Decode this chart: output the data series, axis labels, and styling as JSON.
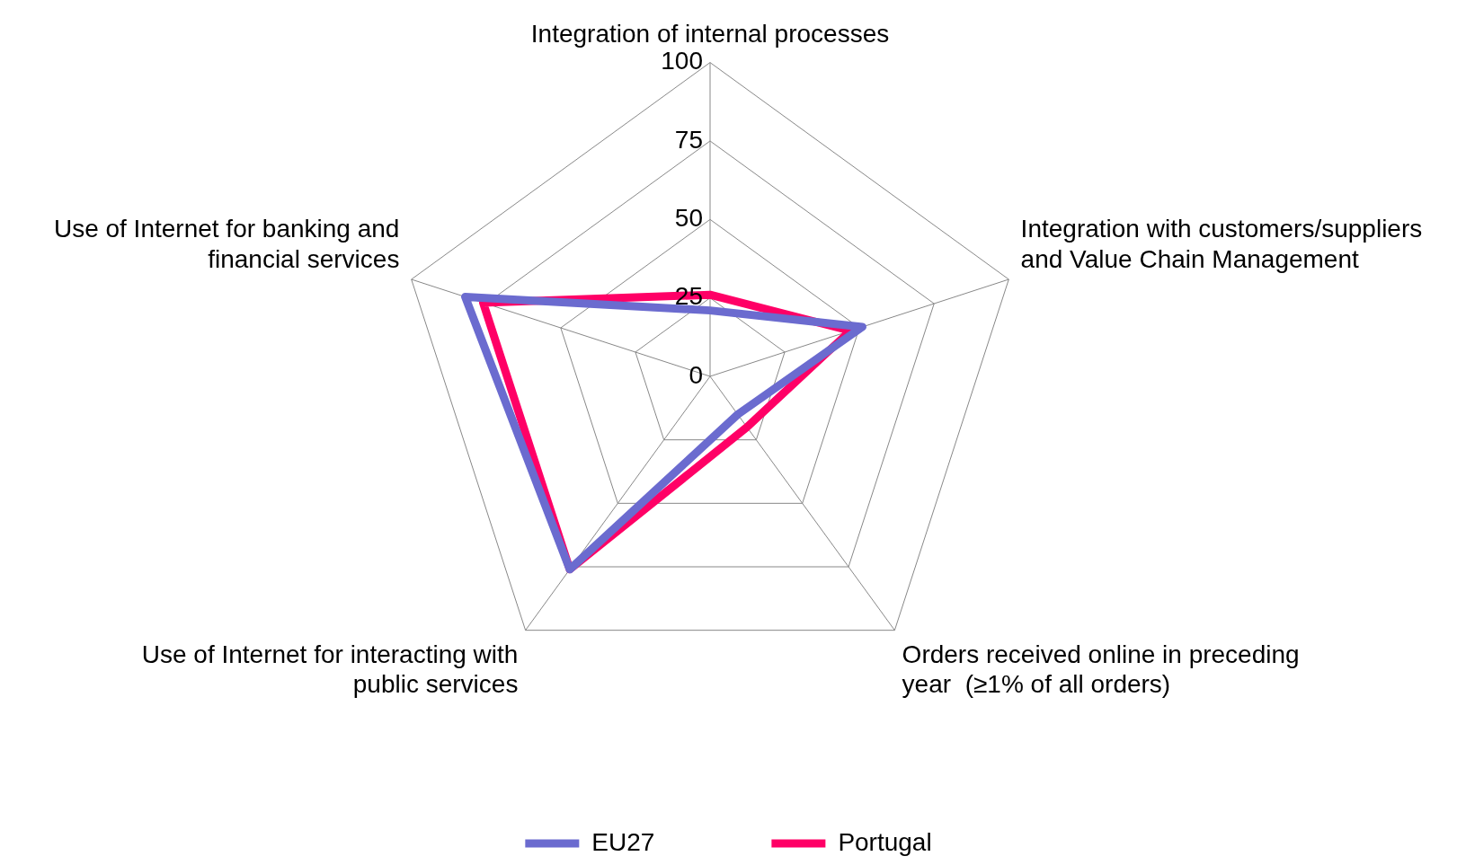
{
  "chart_data": {
    "type": "radar",
    "categories": [
      "Integration of internal processes",
      "Integration with customers/suppliers and Value Chain Management",
      "Orders received online in preceding year  (≥1% of all orders)",
      "Use of Internet for interacting with public services",
      "Use of Internet for banking and financial services"
    ],
    "series": [
      {
        "name": "EU27",
        "color": "#6b6bcf",
        "values": [
          21,
          51,
          15,
          76,
          82
        ]
      },
      {
        "name": "Portugal",
        "color": "#ff0066",
        "values": [
          26,
          47,
          20,
          76,
          76
        ]
      }
    ],
    "ylim": [
      0,
      100
    ],
    "yticks": [
      0,
      25,
      50,
      75,
      100
    ],
    "grid": true,
    "legend": "bottom",
    "marker": "none",
    "line_style": "solid"
  }
}
